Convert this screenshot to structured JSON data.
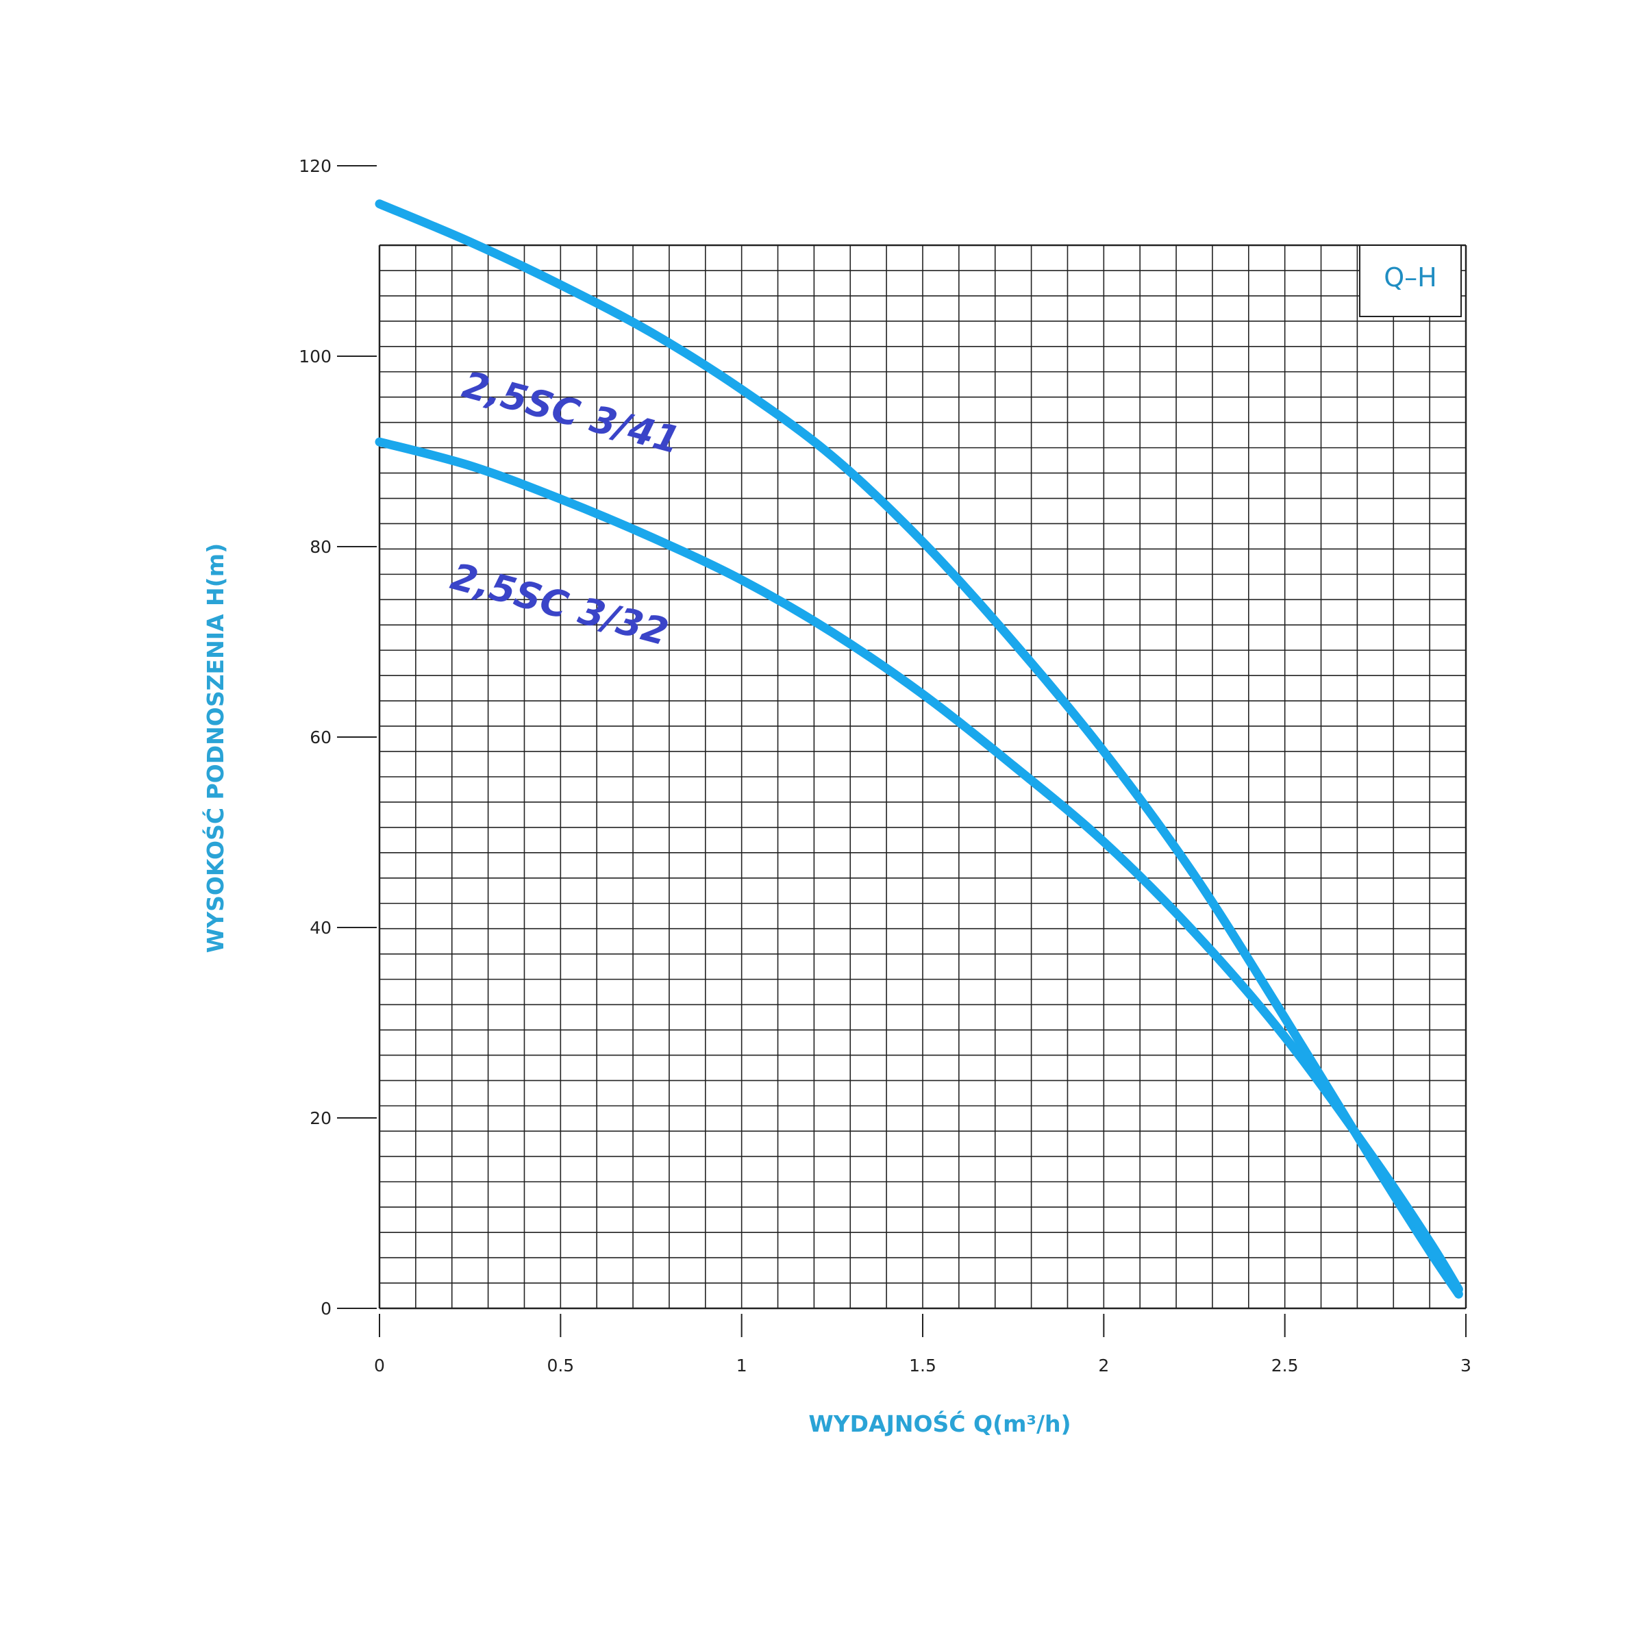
{
  "chart_data": {
    "type": "line",
    "tag": "Q–H",
    "xlabel": "WYDAJNOŚĆ   Q(m³/h)",
    "ylabel": "WYSOKOŚĆ PODNOSZENIA   H(m)",
    "xlim": [
      0,
      3
    ],
    "ylim": [
      0,
      120
    ],
    "xticks": [
      {
        "value": 0,
        "label": "0"
      },
      {
        "value": 0.5,
        "label": "0.5"
      },
      {
        "value": 1,
        "label": "1"
      },
      {
        "value": 1.5,
        "label": "1.5"
      },
      {
        "value": 2,
        "label": "2"
      },
      {
        "value": 2.5,
        "label": "2.5"
      },
      {
        "value": 3,
        "label": "3"
      }
    ],
    "yticks": [
      {
        "value": 0,
        "label": "0"
      },
      {
        "value": 20,
        "label": "20"
      },
      {
        "value": 40,
        "label": "40"
      },
      {
        "value": 60,
        "label": "60"
      },
      {
        "value": 80,
        "label": "80"
      },
      {
        "value": 100,
        "label": "100"
      },
      {
        "value": 120,
        "label": "120"
      }
    ],
    "grid": true,
    "series": [
      {
        "name": "2,5SC 3/41",
        "color": "#1aa7ec",
        "x": [
          0,
          0.25,
          0.5,
          0.75,
          1,
          1.25,
          1.5,
          1.75,
          2,
          2.25,
          2.5,
          2.75,
          2.9,
          2.98
        ],
        "y": [
          116,
          112,
          107.5,
          102.5,
          96.5,
          89.5,
          80.5,
          70,
          58.5,
          45.5,
          30.5,
          15,
          6,
          1.5
        ]
      },
      {
        "name": "2,5SC 3/32",
        "color": "#1aa7ec",
        "x": [
          0,
          0.25,
          0.5,
          0.75,
          1,
          1.25,
          1.5,
          1.75,
          2,
          2.25,
          2.5,
          2.75,
          2.9,
          2.98
        ],
        "y": [
          91,
          88.5,
          85,
          81,
          76.5,
          71,
          64.5,
          57,
          49,
          39.5,
          28.5,
          15.5,
          7,
          2
        ]
      }
    ]
  }
}
